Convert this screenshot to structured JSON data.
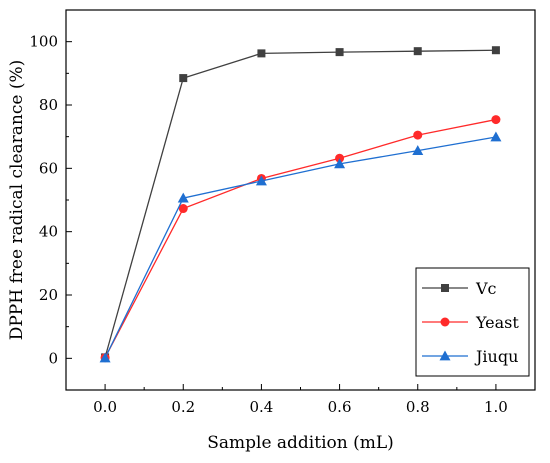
{
  "chart_data": {
    "type": "line",
    "xlabel": "Sample addition (mL)",
    "ylabel": "DPPH free radical clearance (%)",
    "xlim": [
      -0.1,
      1.1
    ],
    "ylim": [
      -10,
      110
    ],
    "xticks": [
      "0.0",
      "0.2",
      "0.4",
      "0.6",
      "0.8",
      "1.0"
    ],
    "yticks": [
      "0",
      "20",
      "40",
      "60",
      "80",
      "100"
    ],
    "x": [
      0.0,
      0.2,
      0.4,
      0.6,
      0.8,
      1.0
    ],
    "legend_position": "bottom-right",
    "grid": false,
    "series": [
      {
        "name": "Vc",
        "marker": "square",
        "color": "#404040",
        "values": [
          0.3,
          88.5,
          96.3,
          96.7,
          97.0,
          97.3
        ]
      },
      {
        "name": "Yeast",
        "marker": "circle",
        "color": "#ff2a2a",
        "values": [
          0.2,
          47.3,
          56.8,
          63.2,
          70.5,
          75.4
        ]
      },
      {
        "name": "Jiuqu",
        "marker": "triangle",
        "color": "#1f6fd1",
        "values": [
          0.1,
          50.6,
          56.0,
          61.4,
          65.6,
          69.9
        ]
      }
    ]
  }
}
